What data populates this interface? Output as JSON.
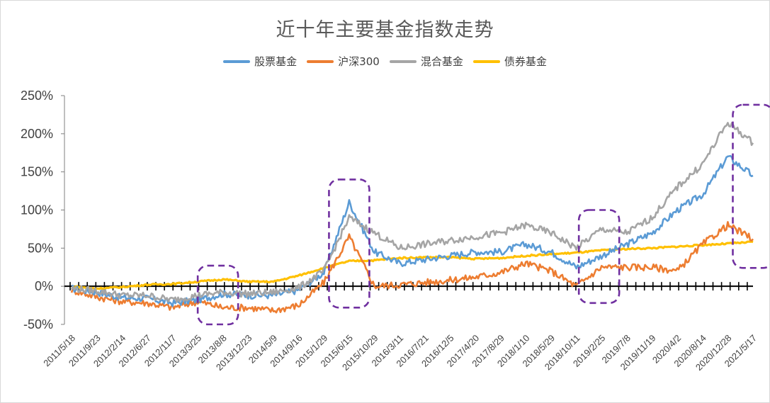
{
  "chart_data": {
    "type": "line",
    "title": "近十年主要基金指数走势",
    "ylim": [
      -50,
      250
    ],
    "yticks": [
      "250%",
      "200%",
      "150%",
      "100%",
      "50%",
      "0%",
      "-50%"
    ],
    "ytick_values": [
      250,
      200,
      150,
      100,
      50,
      0,
      -50
    ],
    "legend_position": "top",
    "x_tick_labels": [
      "2011/5/18",
      "2011/9/23",
      "2012/2/14",
      "2012/6/27",
      "2012/11/7",
      "2013/3/25",
      "2013/8/8",
      "2013/12/23",
      "2014/5/9",
      "2014/9/16",
      "2015/1/29",
      "2015/6/15",
      "2015/10/29",
      "2016/3/11",
      "2016/7/21",
      "2016/12/5",
      "2017/4/20",
      "2017/8/29",
      "2018/1/10",
      "2018/5/29",
      "2018/10/11",
      "2019/2/25",
      "2019/7/8",
      "2019/11/19",
      "2020/4/2",
      "2020/8/14",
      "2020/12/28",
      "2021/5/17"
    ],
    "series": [
      {
        "name": "股票基金",
        "color": "#5b9bd5",
        "values": [
          -3,
          -8,
          -15,
          -16,
          -22,
          -18,
          -10,
          -12,
          -12,
          -5,
          18,
          110,
          45,
          30,
          35,
          40,
          45,
          45,
          55,
          45,
          25,
          40,
          55,
          70,
          100,
          120,
          170,
          145
        ]
      },
      {
        "name": "沪深300",
        "color": "#ed7d31",
        "values": [
          -5,
          -14,
          -20,
          -22,
          -28,
          -20,
          -28,
          -28,
          -32,
          -25,
          5,
          65,
          0,
          2,
          5,
          8,
          12,
          18,
          30,
          20,
          0,
          25,
          25,
          25,
          20,
          55,
          80,
          62
        ]
      },
      {
        "name": "混合基金",
        "color": "#a5a5a5",
        "values": [
          -3,
          -6,
          -12,
          -12,
          -18,
          -12,
          -8,
          -10,
          -8,
          -2,
          20,
          90,
          70,
          50,
          55,
          60,
          65,
          70,
          80,
          70,
          50,
          75,
          70,
          90,
          130,
          160,
          215,
          188
        ]
      },
      {
        "name": "债券基金",
        "color": "#ffc000",
        "values": [
          0,
          -3,
          -1,
          2,
          3,
          6,
          9,
          6,
          6,
          14,
          24,
          33,
          34,
          37,
          38,
          38,
          36,
          37,
          40,
          42,
          44,
          47,
          49,
          50,
          52,
          54,
          56,
          58
        ]
      }
    ],
    "annotations": [
      "dashed-box",
      "dashed-box",
      "dashed-box",
      "dashed-box"
    ]
  }
}
